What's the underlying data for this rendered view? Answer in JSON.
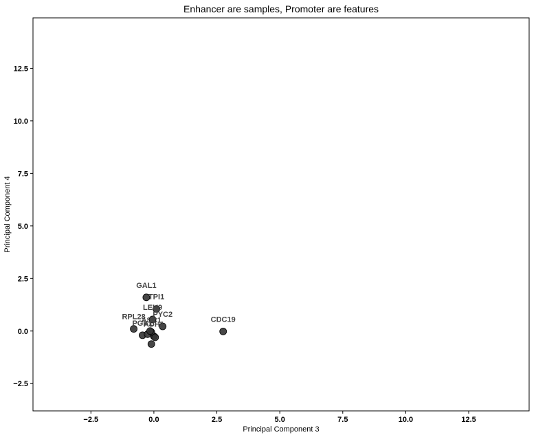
{
  "chart_data": {
    "type": "scatter",
    "title": "Enhancer are samples, Promoter are features",
    "xlabel": "Principal Component 3",
    "ylabel": "Principal Component 4",
    "xlim": [
      -4.8,
      14.9
    ],
    "ylim": [
      -3.8,
      14.9
    ],
    "xticks": [
      -2.5,
      0.0,
      2.5,
      5.0,
      7.5,
      10.0,
      12.5
    ],
    "xtick_labels": [
      "−2.5",
      "0.0",
      "2.5",
      "5.0",
      "7.5",
      "10.0",
      "12.5"
    ],
    "yticks": [
      -2.5,
      0.0,
      2.5,
      5.0,
      7.5,
      10.0,
      12.5
    ],
    "ytick_labels": [
      "−2.5",
      "0.0",
      "2.5",
      "5.0",
      "7.5",
      "10.0",
      "12.5"
    ],
    "grid": false,
    "marker_color": "#333333",
    "points": [
      {
        "label": "GAL1",
        "x": -0.3,
        "y": 1.6
      },
      {
        "label": "TPI1",
        "x": 0.1,
        "y": 1.05
      },
      {
        "label": "LEU9",
        "x": -0.05,
        "y": 0.55
      },
      {
        "label": "PYC2",
        "x": 0.35,
        "y": 0.22
      },
      {
        "label": "RPL28",
        "x": -0.8,
        "y": 0.1
      },
      {
        "label": "PGK1",
        "x": -0.45,
        "y": -0.2
      },
      {
        "label": "ADH1",
        "x": 0.0,
        "y": -0.25
      },
      {
        "label": "ASC1",
        "x": -0.1,
        "y": -0.05
      },
      {
        "label": "CDC19",
        "x": 2.75,
        "y": -0.02
      },
      {
        "label": "",
        "x": -0.1,
        "y": -0.62
      },
      {
        "label": "",
        "x": -0.25,
        "y": -0.15
      },
      {
        "label": "",
        "x": 0.05,
        "y": -0.3
      },
      {
        "label": "",
        "x": -0.15,
        "y": 0.0
      }
    ]
  }
}
